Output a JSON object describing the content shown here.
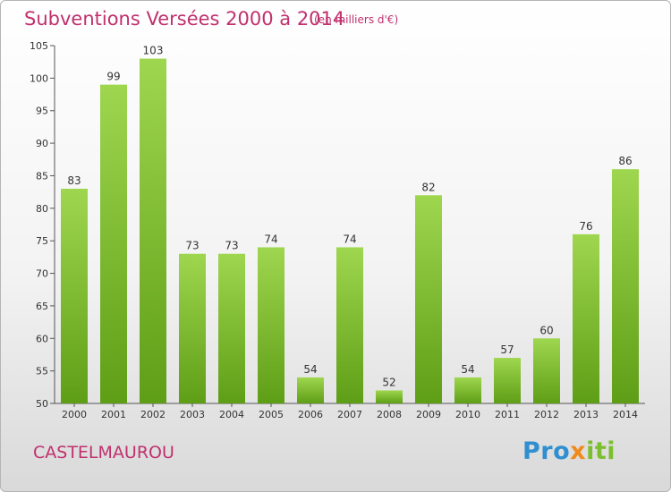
{
  "header": {
    "title": "Subventions Versées 2000 à 2014",
    "subtitle": "(en milliers d'€)"
  },
  "footer": {
    "commune": "CASTELMAUROU",
    "logo_parts": [
      "Pro",
      "x",
      "iti"
    ],
    "logo_colors": [
      "#2f8fd0",
      "#f08a1c",
      "#7cbf2e"
    ]
  },
  "colors": {
    "title": "#c0306e",
    "bar_light": "#9fd64f",
    "bar_dark": "#5e9e16",
    "axis": "#555555"
  },
  "chart_data": {
    "type": "bar",
    "title": "Subventions Versées 2000 à 2014",
    "subtitle": "(en milliers d'€)",
    "categories": [
      "2000",
      "2001",
      "2002",
      "2003",
      "2004",
      "2005",
      "2006",
      "2007",
      "2008",
      "2009",
      "2010",
      "2011",
      "2012",
      "2013",
      "2014"
    ],
    "values": [
      83,
      99,
      103,
      73,
      73,
      74,
      54,
      74,
      52,
      82,
      54,
      57,
      60,
      76,
      86
    ],
    "ylim": [
      50,
      105
    ],
    "yticks": [
      50,
      55,
      60,
      65,
      70,
      75,
      80,
      85,
      90,
      95,
      100,
      105
    ],
    "grid": false,
    "data_labels": true
  }
}
